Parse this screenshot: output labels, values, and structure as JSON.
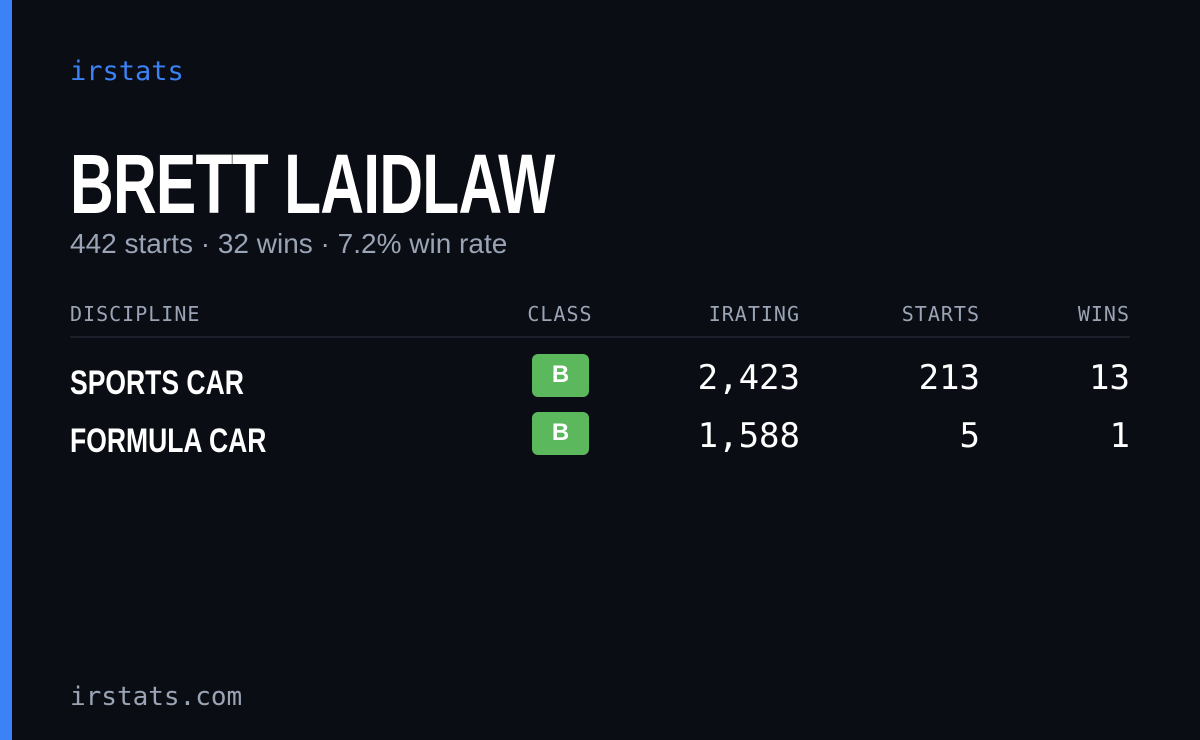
{
  "brand": "irstats",
  "title": "BRETT LAIDLAW",
  "subtitle": "442 starts · 32 wins · 7.2% win rate",
  "table": {
    "headers": [
      "DISCIPLINE",
      "CLASS",
      "IRATING",
      "STARTS",
      "WINS"
    ],
    "rows": [
      [
        "SPORTS CAR",
        "B",
        "2,423",
        "213",
        "13"
      ],
      [
        "FORMULA CAR",
        "B",
        "1,588",
        "5",
        "1"
      ]
    ]
  },
  "footer": "irstats.com"
}
